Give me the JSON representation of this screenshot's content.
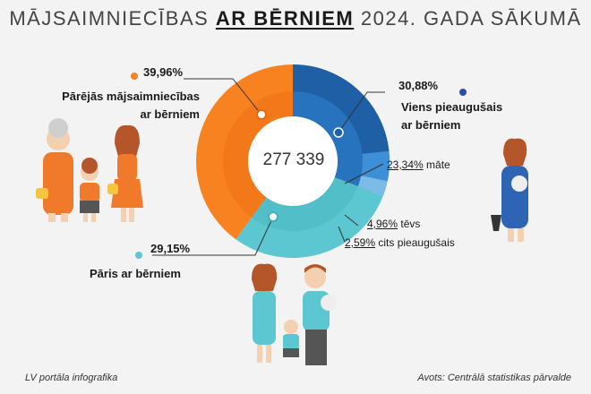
{
  "title": {
    "pre": "MĀJSAIMNIECĪBAS ",
    "highlight": "AR BĒRNIEM",
    "post": " 2024. GADA SĀKUMĀ"
  },
  "footer": {
    "left": "LV portāla infografika",
    "right": "Avots: Centrālā statistikas pārvalde"
  },
  "chart_data": {
    "type": "pie",
    "total": "277 339",
    "slices": [
      {
        "label": "Viens pieaugušais ar bērniem",
        "value": 30.88,
        "pct_label": "30,88%",
        "color": "#2d7fc9"
      },
      {
        "label": "Pāris ar bērniem",
        "value": 29.15,
        "pct_label": "29,15%",
        "color": "#5cc7d0"
      },
      {
        "label": "Pārējās mājsaimniecības ar bērniem",
        "value": 39.96,
        "pct_label": "39,96%",
        "color": "#f7821f"
      }
    ],
    "sub_slices": [
      {
        "label": "māte",
        "value": 23.34,
        "pct_label": "23,34%",
        "color": "#1f5fa6"
      },
      {
        "label": "tēvs",
        "value": 4.96,
        "pct_label": "4,96%",
        "color": "#3d8fd8"
      },
      {
        "label": "cits pieaugušais",
        "value": 2.59,
        "pct_label": "2,59%",
        "color": "#7cbbe8"
      }
    ]
  },
  "labels": {
    "other_line1": "Pārējās mājsaimniecības",
    "other_line2": "ar bērniem",
    "single_line1": "Viens pieaugušais",
    "single_line2": "ar bērniem",
    "couple": "Pāris ar bērniem"
  },
  "colors": {
    "orange": "#f7821f",
    "orange_dark": "#e8680e",
    "blue": "#2d7fc9",
    "blue_dark": "#1f5fa6",
    "teal": "#5cc7d0",
    "teal_dark": "#3fb0bb"
  }
}
